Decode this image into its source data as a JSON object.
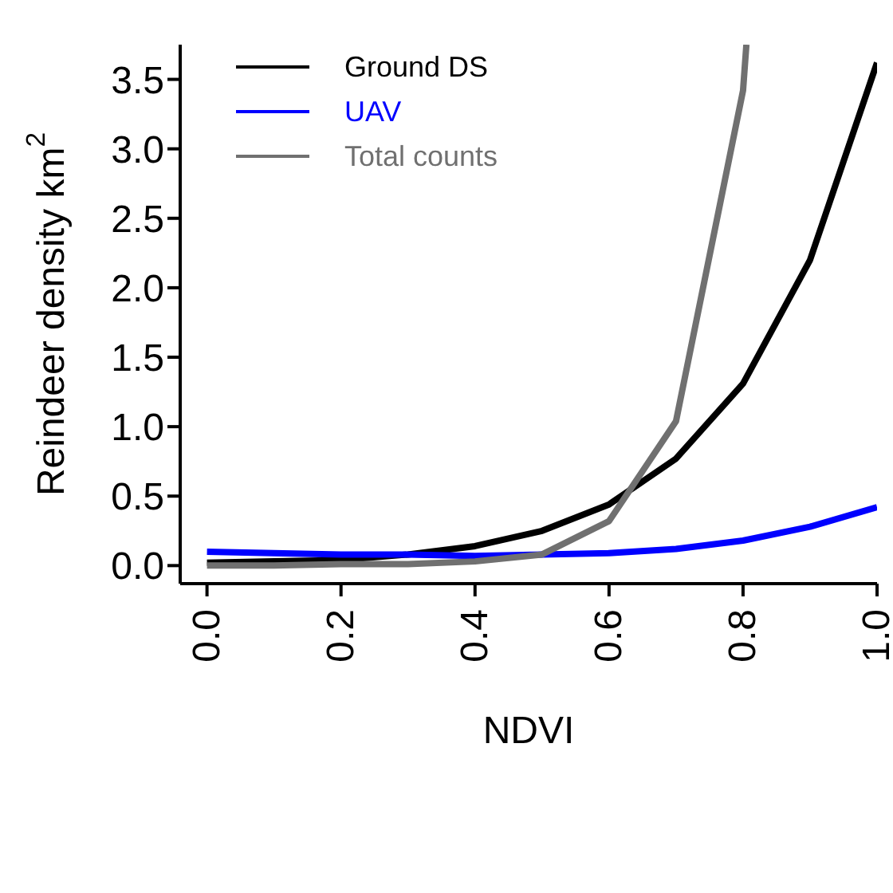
{
  "chart_data": {
    "type": "line",
    "xlabel": "NDVI",
    "ylabel": "Reindeer density  km$^{2}$",
    "x": [
      0,
      0.1,
      0.2,
      0.3,
      0.4,
      0.5,
      0.6,
      0.7,
      0.8,
      0.9,
      1.0
    ],
    "series": [
      {
        "name": "Ground DS",
        "color": "#000000",
        "values": [
          0.02,
          0.03,
          0.04,
          0.08,
          0.14,
          0.25,
          0.44,
          0.77,
          1.31,
          2.2,
          3.62
        ]
      },
      {
        "name": "UAV",
        "color": "#0000ff",
        "values": [
          0.1,
          0.09,
          0.08,
          0.08,
          0.07,
          0.08,
          0.09,
          0.12,
          0.18,
          0.28,
          0.42
        ]
      },
      {
        "name": "Total counts",
        "color": "#707070",
        "x": [
          0,
          0.1,
          0.2,
          0.3,
          0.4,
          0.5,
          0.6,
          0.7,
          0.8,
          0.805
        ],
        "values": [
          0,
          0,
          0.01,
          0.01,
          0.03,
          0.08,
          0.32,
          1.04,
          3.42,
          3.75
        ]
      }
    ],
    "xlim": [
      -0.04,
      1.0
    ],
    "ylim": [
      -0.13,
      3.75
    ],
    "xticks": [
      {
        "value": 0,
        "label": "0.0"
      },
      {
        "value": 0.2,
        "label": "0.2"
      },
      {
        "value": 0.4,
        "label": "0.4"
      },
      {
        "value": 0.6,
        "label": "0.6"
      },
      {
        "value": 0.8,
        "label": "0.8"
      },
      {
        "value": 1,
        "label": "1.0"
      }
    ],
    "yticks": [
      {
        "value": 0,
        "label": "0.0"
      },
      {
        "value": 0.5,
        "label": "0.5"
      },
      {
        "value": 1,
        "label": "1.0"
      },
      {
        "value": 1.5,
        "label": "1.5"
      },
      {
        "value": 2,
        "label": "2.0"
      },
      {
        "value": 2.5,
        "label": "2.5"
      },
      {
        "value": 3,
        "label": "3.0"
      },
      {
        "value": 3.5,
        "label": "3.5"
      }
    ],
    "grid": false,
    "legend": "top left",
    "marker": "none",
    "line_style": "solid"
  }
}
